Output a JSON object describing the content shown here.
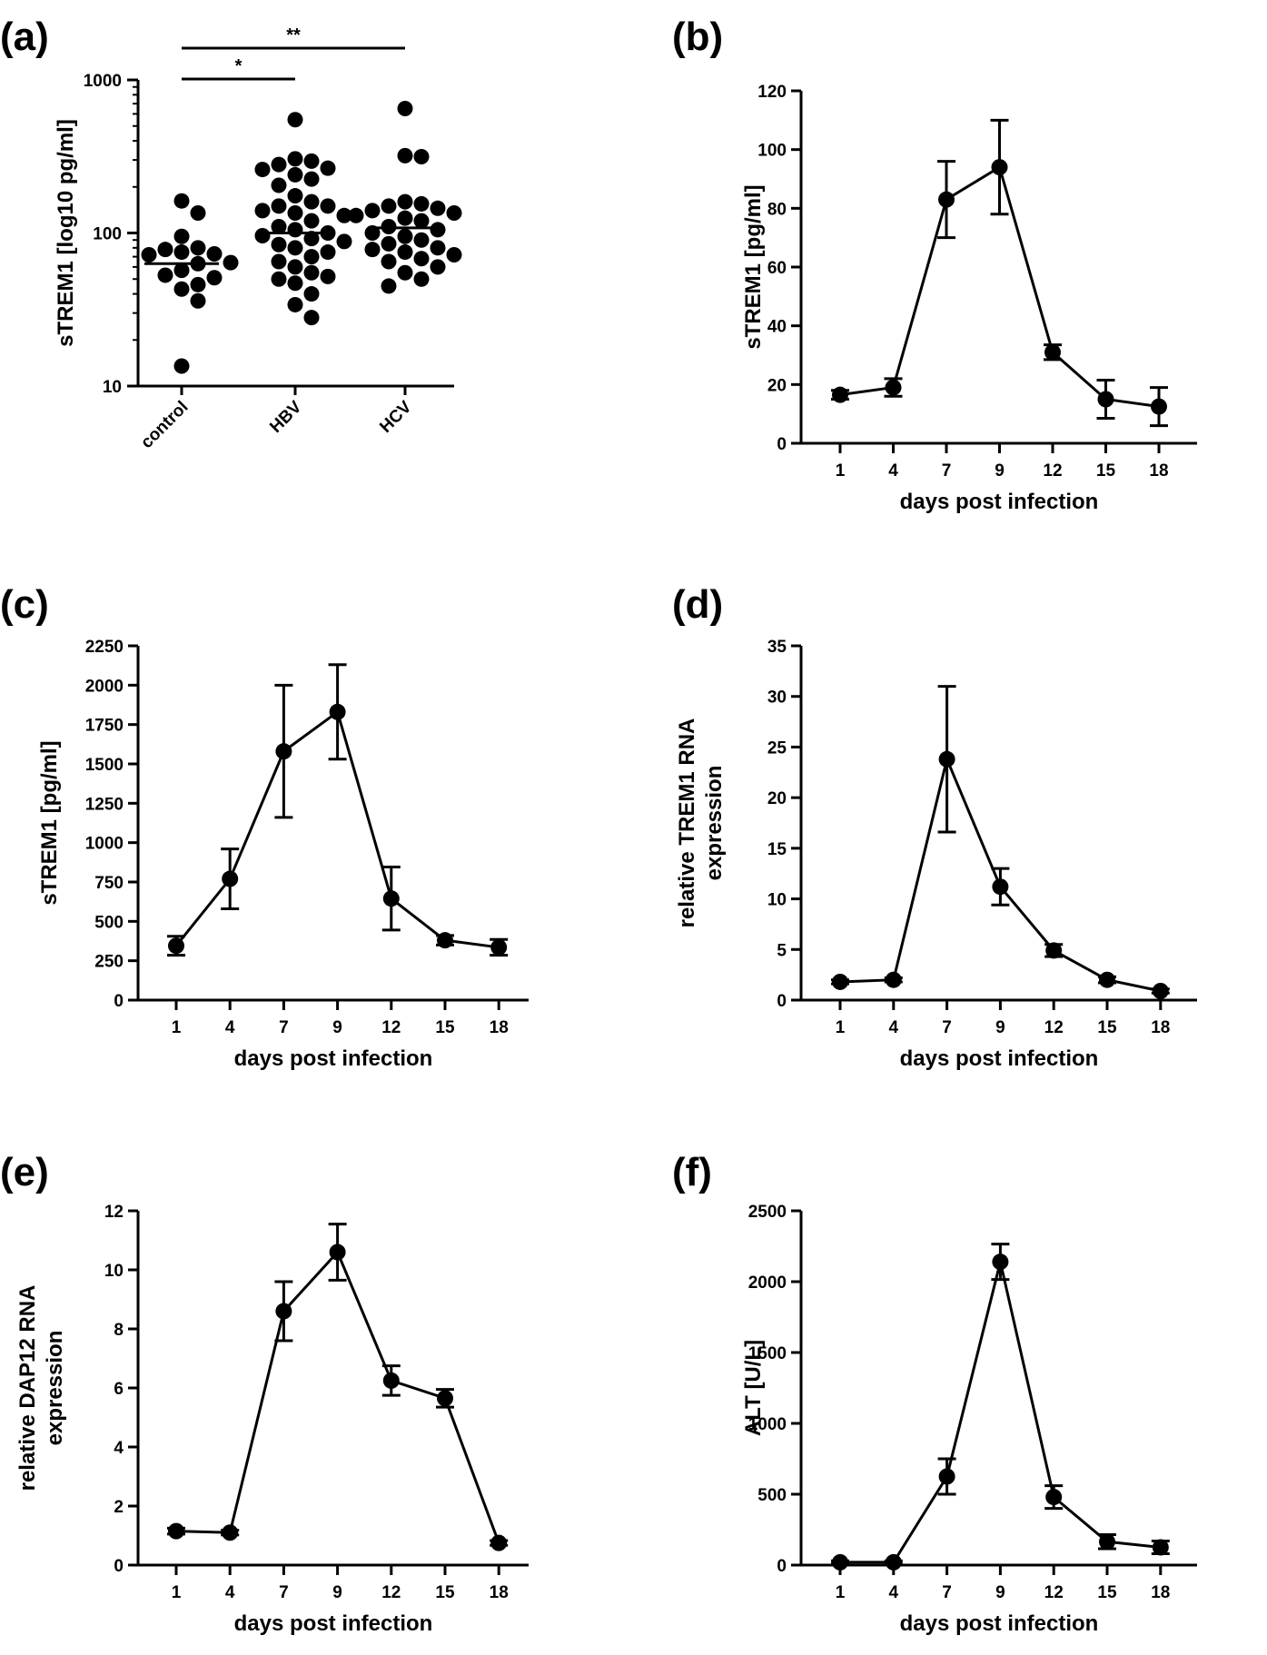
{
  "chart_data": [
    {
      "panel": "(a)",
      "type": "scatter",
      "yscale": "log10",
      "ylabel": "sTREM1 [log10 pg/ml]",
      "xlabel": "",
      "categories": [
        "control",
        "HBV",
        "HCV"
      ],
      "ylim": [
        10,
        1000
      ],
      "yticks": [
        10,
        100,
        1000
      ],
      "ytick_labels": [
        "10",
        "100",
        "1000"
      ],
      "groups": [
        {
          "name": "control",
          "mean": 63,
          "values": [
            162,
            135,
            95,
            80,
            78,
            75,
            73,
            72,
            64,
            63,
            57,
            53,
            51,
            46,
            43,
            36,
            13.5
          ]
        },
        {
          "name": "HBV",
          "mean": 100,
          "values": [
            550,
            305,
            295,
            280,
            265,
            260,
            240,
            225,
            205,
            175,
            160,
            150,
            150,
            140,
            135,
            130,
            120,
            110,
            105,
            100,
            96,
            92,
            88,
            84,
            80,
            75,
            70,
            65,
            60,
            55,
            52,
            50,
            47,
            40,
            34,
            28
          ]
        },
        {
          "name": "HCV",
          "mean": 108,
          "values": [
            650,
            320,
            315,
            160,
            155,
            150,
            145,
            140,
            135,
            130,
            125,
            120,
            110,
            105,
            100,
            95,
            90,
            85,
            80,
            78,
            75,
            72,
            68,
            65,
            60,
            55,
            50,
            45
          ]
        }
      ],
      "significance": [
        {
          "from": "control",
          "to": "HBV",
          "label": "*"
        },
        {
          "from": "control",
          "to": "HCV",
          "label": "**"
        }
      ]
    },
    {
      "panel": "(b)",
      "type": "line",
      "xlabel": "days post infection",
      "ylabel": "sTREM1 [pg/ml]",
      "x": [
        1,
        4,
        7,
        9,
        12,
        15,
        18
      ],
      "values": [
        16.5,
        19,
        83,
        94,
        31,
        15,
        12.5
      ],
      "error": [
        1.5,
        3,
        13,
        16,
        2.5,
        6.5,
        6.5
      ],
      "ylim": [
        0,
        120
      ],
      "yticks": [
        0,
        20,
        40,
        60,
        80,
        100,
        120
      ]
    },
    {
      "panel": "(c)",
      "type": "line",
      "xlabel": "days post infection",
      "ylabel": "sTREM1 [pg/ml]",
      "x": [
        1,
        4,
        7,
        9,
        12,
        15,
        18
      ],
      "values": [
        345,
        770,
        1580,
        1830,
        645,
        380,
        335
      ],
      "error": [
        60,
        190,
        420,
        300,
        200,
        30,
        50
      ],
      "ylim": [
        0,
        2250
      ],
      "yticks": [
        0,
        250,
        500,
        750,
        1000,
        1250,
        1500,
        1750,
        2000,
        2250
      ]
    },
    {
      "panel": "(d)",
      "type": "line",
      "xlabel": "days post infection",
      "ylabel_lines": [
        "relative TREM1 RNA",
        "expression"
      ],
      "x": [
        1,
        4,
        7,
        9,
        12,
        15,
        18
      ],
      "values": [
        1.8,
        2.0,
        23.8,
        11.2,
        4.9,
        2.0,
        0.9
      ],
      "error": [
        0.2,
        0.2,
        7.2,
        1.8,
        0.6,
        0.3,
        0.2
      ],
      "ylim": [
        0,
        35
      ],
      "yticks": [
        0,
        5,
        10,
        15,
        20,
        25,
        30,
        35
      ]
    },
    {
      "panel": "(e)",
      "type": "line",
      "xlabel": "days post infection",
      "ylabel_lines": [
        "relative DAP12 RNA",
        "expression"
      ],
      "x": [
        1,
        4,
        7,
        9,
        12,
        15,
        18
      ],
      "values": [
        1.15,
        1.1,
        8.6,
        10.6,
        6.25,
        5.65,
        0.75
      ],
      "error": [
        0.1,
        0.08,
        1.0,
        0.95,
        0.5,
        0.3,
        0.08
      ],
      "ylim": [
        0,
        12
      ],
      "yticks": [
        0,
        2,
        4,
        6,
        8,
        10,
        12
      ]
    },
    {
      "panel": "(f)",
      "type": "line",
      "xlabel": "days post infection",
      "ylabel": "ALT [U/L]",
      "x": [
        1,
        4,
        7,
        9,
        12,
        15,
        18
      ],
      "values": [
        20,
        20,
        625,
        2140,
        480,
        165,
        125
      ],
      "error": [
        10,
        10,
        125,
        125,
        80,
        50,
        45
      ],
      "ylim": [
        0,
        2500
      ],
      "yticks": [
        0,
        500,
        1000,
        1500,
        2000,
        2500
      ]
    }
  ]
}
